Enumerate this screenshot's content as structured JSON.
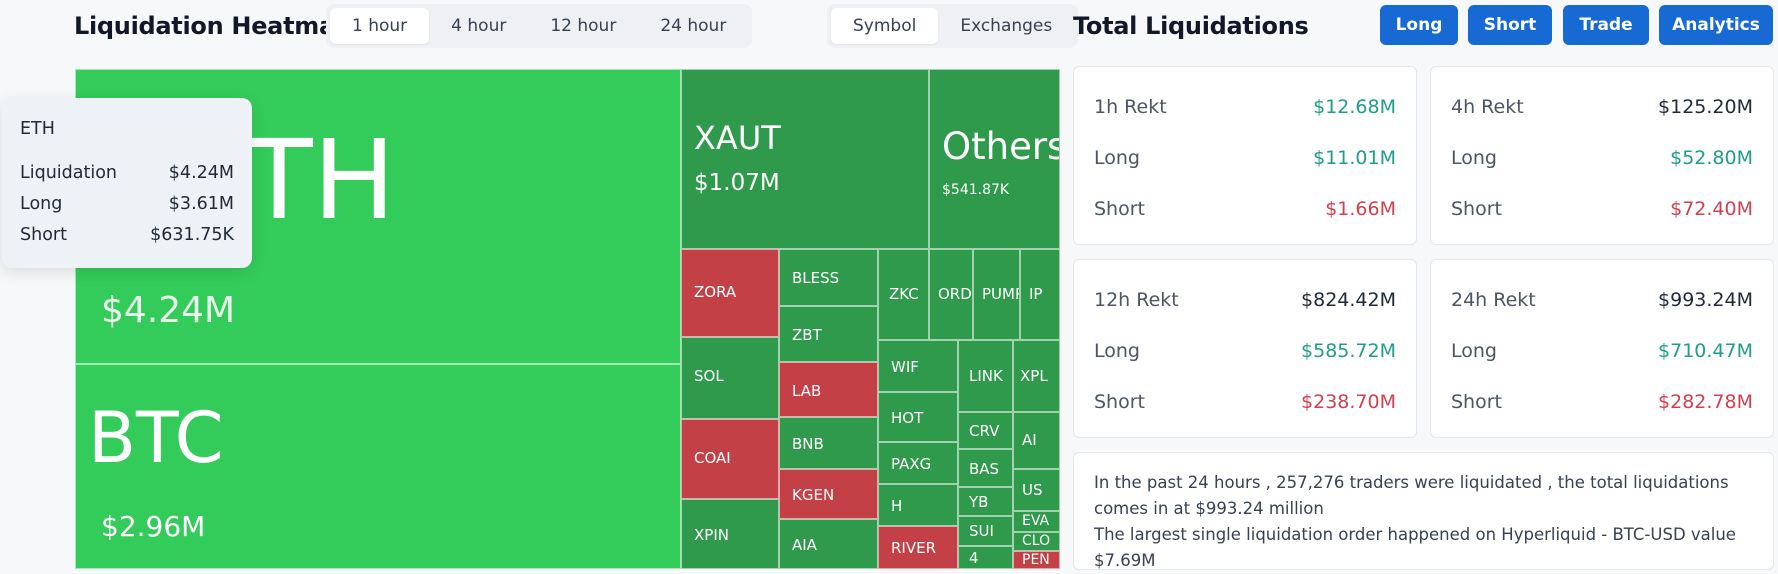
{
  "heatmap": {
    "title": "Liquidation Heatmap",
    "timeframes": [
      "1 hour",
      "4 hour",
      "12 hour",
      "24 hour"
    ],
    "selected_timeframe": "1 hour",
    "group_options": [
      "Symbol",
      "Exchanges"
    ],
    "selected_group": "Symbol",
    "tiles": {
      "eth": {
        "symbol": "ETH",
        "value": "$4.24M"
      },
      "btc": {
        "symbol": "BTC",
        "value": "$2.96M"
      },
      "xaut": {
        "symbol": "XAUT",
        "value": "$1.07M"
      },
      "others": {
        "symbol": "Others",
        "value": "$541.87K"
      },
      "small": [
        "ZORA",
        "BLESS",
        "ZKC",
        "ORDI",
        "PUMP",
        "IP",
        "ZBT",
        "SOL",
        "LAB",
        "WIF",
        "LINK",
        "XPL",
        "HOT",
        "COAI",
        "BNB",
        "CRV",
        "AI",
        "PAXG",
        "BAS",
        "US",
        "KGEN",
        "H",
        "YB",
        "EVA",
        "SUI",
        "CLO",
        "XPIN",
        "AIA",
        "RIVER",
        "4",
        "PEN"
      ]
    },
    "tooltip": {
      "symbol": "ETH",
      "liquidation_label": "Liquidation",
      "liquidation_value": "$4.24M",
      "long_label": "Long",
      "long_value": "$3.61M",
      "short_label": "Short",
      "short_value": "$631.75K"
    }
  },
  "totals": {
    "title": "Total Liquidations",
    "buttons": [
      "Long",
      "Short",
      "Trade",
      "Analytics"
    ],
    "cards": [
      {
        "label": "1h Rekt",
        "total": "$12.68M",
        "long_label": "Long",
        "long": "$11.01M",
        "short_label": "Short",
        "short": "$1.66M"
      },
      {
        "label": "4h Rekt",
        "total": "$125.20M",
        "long_label": "Long",
        "long": "$52.80M",
        "short_label": "Short",
        "short": "$72.40M"
      },
      {
        "label": "12h Rekt",
        "total": "$824.42M",
        "long_label": "Long",
        "long": "$585.72M",
        "short_label": "Short",
        "short": "$238.70M"
      },
      {
        "label": "24h Rekt",
        "total": "$993.24M",
        "long_label": "Long",
        "long": "$710.47M",
        "short_label": "Short",
        "short": "$282.78M"
      }
    ],
    "summary_line1": "In the past 24 hours , 257,276 traders were liquidated , the total liquidations comes in at $993.24 million",
    "summary_line2": "The largest single liquidation order happened on Hyperliquid - BTC-USD value $7.69M"
  },
  "colors": {
    "primary_button": "#1769d3",
    "heat_green_bright": "#33cc5a",
    "heat_green_dark": "#309a4c",
    "heat_red": "#c34146",
    "long_green": "#1e9e87",
    "short_red": "#d23f4e"
  }
}
